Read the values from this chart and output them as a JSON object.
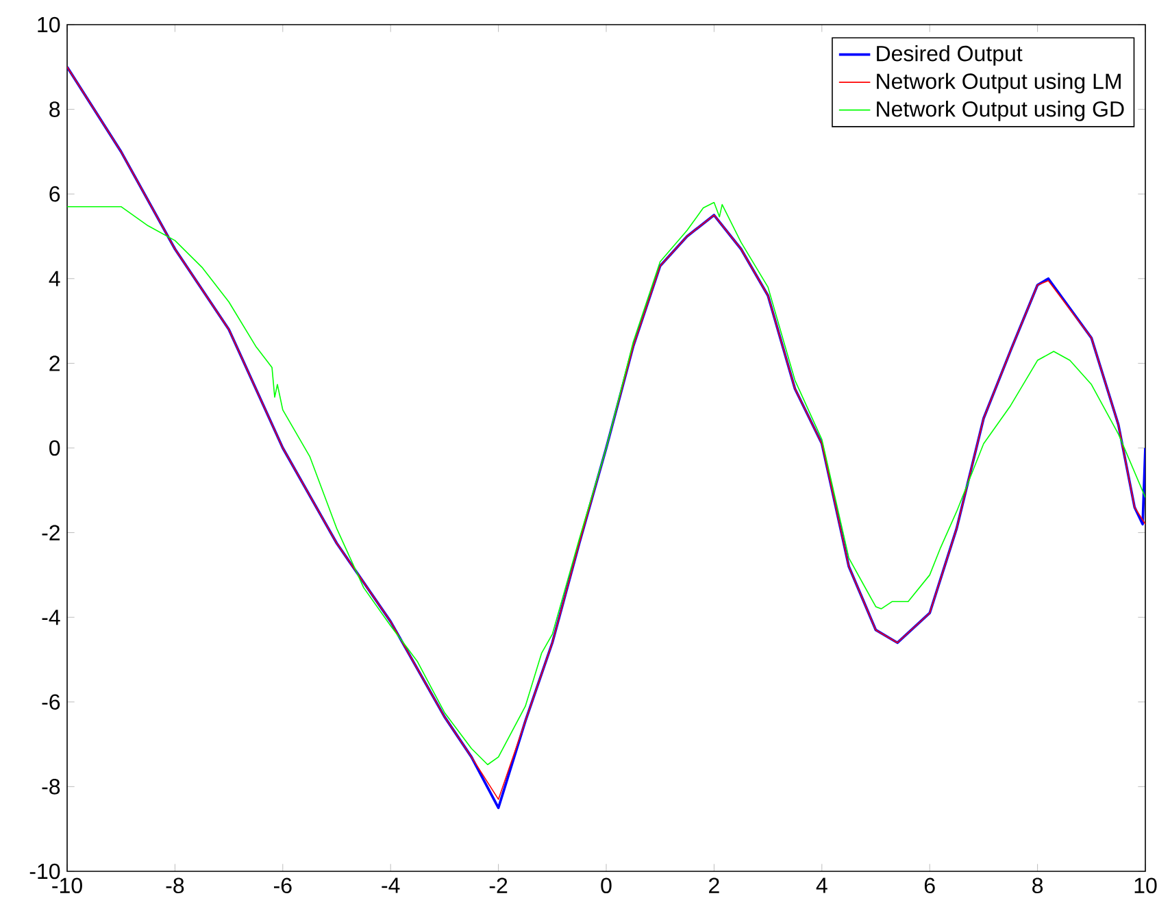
{
  "chart_data": {
    "type": "line",
    "xlim": [
      -10,
      10
    ],
    "ylim": [
      -10,
      10
    ],
    "xticks": [
      -10,
      -8,
      -6,
      -4,
      -2,
      0,
      2,
      4,
      6,
      8,
      10
    ],
    "yticks": [
      -10,
      -8,
      -6,
      -4,
      -2,
      0,
      2,
      4,
      6,
      8,
      10
    ],
    "legend": "top right",
    "series": [
      {
        "name": "Desired Output",
        "color": "#0000ff",
        "x": [
          -10,
          -9,
          -8,
          -7,
          -6,
          -5,
          -4,
          -3,
          -2.5,
          -2,
          -1.5,
          -1,
          -0.5,
          0,
          0.5,
          1,
          1.5,
          2,
          2.5,
          3,
          3.5,
          4,
          4.5,
          5,
          5.4,
          6,
          6.5,
          7,
          7.5,
          8,
          8.2,
          9,
          9.5,
          9.8,
          9.95,
          10
        ],
        "values": [
          9.0,
          7.0,
          4.7,
          2.8,
          0.0,
          -2.25,
          -4.1,
          -6.35,
          -7.3,
          -8.5,
          -6.45,
          -4.6,
          -2.25,
          0.0,
          2.4,
          4.3,
          5.0,
          5.5,
          4.7,
          3.6,
          1.4,
          0.1,
          -2.8,
          -4.3,
          -4.6,
          -3.9,
          -1.9,
          0.7,
          2.3,
          3.85,
          4.0,
          2.6,
          0.55,
          -1.4,
          -1.8,
          0.0
        ]
      },
      {
        "name": "Network Output using LM",
        "color": "#ff0000",
        "x": [
          -10,
          -9,
          -8,
          -7,
          -6,
          -5,
          -4,
          -3,
          -2.5,
          -2,
          -1.5,
          -1,
          -0.5,
          0,
          0.5,
          1,
          1.5,
          2,
          2.5,
          3,
          3.5,
          4,
          4.5,
          5,
          5.4,
          6,
          6.5,
          7,
          7.5,
          8,
          8.2,
          9,
          9.5,
          9.8,
          10
        ],
        "values": [
          9.0,
          7.0,
          4.7,
          2.8,
          0.0,
          -2.25,
          -4.1,
          -6.35,
          -7.3,
          -8.3,
          -6.45,
          -4.6,
          -2.25,
          0.0,
          2.4,
          4.3,
          5.0,
          5.5,
          4.7,
          3.6,
          1.4,
          0.1,
          -2.8,
          -4.3,
          -4.6,
          -3.9,
          -1.9,
          0.7,
          2.3,
          3.85,
          3.95,
          2.6,
          0.55,
          -1.4,
          -1.8
        ]
      },
      {
        "name": "Network Output using GD",
        "color": "#00ff00",
        "x": [
          -10,
          -9,
          -8.5,
          -8,
          -7.5,
          -7,
          -6.5,
          -6.2,
          -6.15,
          -6.1,
          -6,
          -5.5,
          -5,
          -4.5,
          -4,
          -3.5,
          -3,
          -2.5,
          -2.2,
          -2,
          -1.5,
          -1.2,
          -1,
          -0.5,
          0,
          0.5,
          1,
          1.5,
          1.8,
          2,
          2.1,
          2.15,
          2.5,
          3,
          3.5,
          4,
          4.5,
          5,
          5.1,
          5.3,
          5.6,
          6,
          6.2,
          6.5,
          7,
          7.5,
          8,
          8.3,
          8.6,
          9,
          9.5,
          10
        ],
        "values": [
          5.7,
          5.7,
          5.25,
          4.9,
          4.27,
          3.45,
          2.4,
          1.9,
          1.2,
          1.5,
          0.9,
          -0.2,
          -1.9,
          -3.3,
          -4.2,
          -5.05,
          -6.25,
          -7.1,
          -7.48,
          -7.3,
          -6.1,
          -4.85,
          -4.4,
          -2.15,
          0.0,
          2.5,
          4.4,
          5.14,
          5.67,
          5.8,
          5.46,
          5.75,
          4.86,
          3.8,
          1.6,
          0.2,
          -2.6,
          -3.75,
          -3.8,
          -3.63,
          -3.63,
          -3.0,
          -2.36,
          -1.5,
          0.1,
          1.0,
          2.07,
          2.28,
          2.07,
          1.5,
          0.33,
          -1.17
        ]
      }
    ]
  }
}
